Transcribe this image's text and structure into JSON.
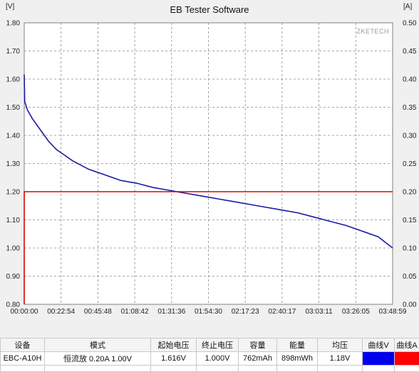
{
  "window": {
    "title": "EB Tester Software",
    "brand": "ZKETECH"
  },
  "chart_data": {
    "type": "line",
    "title": "EB Tester Software",
    "left_unit": "[V]",
    "right_unit": "[A]",
    "y_left_ticks": [
      "1.80",
      "1.70",
      "1.60",
      "1.50",
      "1.40",
      "1.30",
      "1.20",
      "1.10",
      "1.00",
      "0.90",
      "0.80"
    ],
    "y_right_ticks": [
      "0.50",
      "0.45",
      "0.40",
      "0.35",
      "0.30",
      "0.25",
      "0.20",
      "0.15",
      "0.10",
      "0.05",
      "0.00"
    ],
    "x_ticks": [
      "00:00:00",
      "00:22:54",
      "00:45:48",
      "01:08:42",
      "01:31:36",
      "01:54:30",
      "02:17:23",
      "02:40:17",
      "03:03:11",
      "03:26:05",
      "03:48:59"
    ],
    "y_left_range": [
      0.8,
      1.8
    ],
    "y_right_range": [
      0.0,
      0.5
    ],
    "grid": true,
    "series": [
      {
        "name": "曲线V",
        "axis": "left",
        "color": "#1a1aa6",
        "points": [
          [
            0,
            1.616
          ],
          [
            0.3,
            1.52
          ],
          [
            2,
            1.49
          ],
          [
            5,
            1.46
          ],
          [
            10,
            1.42
          ],
          [
            15,
            1.38
          ],
          [
            20,
            1.35
          ],
          [
            25,
            1.33
          ],
          [
            30,
            1.31
          ],
          [
            40,
            1.28
          ],
          [
            50,
            1.26
          ],
          [
            60,
            1.24
          ],
          [
            70,
            1.23
          ],
          [
            80,
            1.215
          ],
          [
            90,
            1.205
          ],
          [
            100,
            1.195
          ],
          [
            110,
            1.185
          ],
          [
            120,
            1.175
          ],
          [
            130,
            1.165
          ],
          [
            140,
            1.155
          ],
          [
            150,
            1.145
          ],
          [
            160,
            1.135
          ],
          [
            170,
            1.125
          ],
          [
            180,
            1.11
          ],
          [
            190,
            1.095
          ],
          [
            200,
            1.08
          ],
          [
            210,
            1.06
          ],
          [
            220,
            1.04
          ],
          [
            229,
            1.0
          ]
        ]
      },
      {
        "name": "曲线A",
        "axis": "right",
        "color": "#e00000",
        "points": [
          [
            0,
            0.0
          ],
          [
            0.01,
            0.2
          ],
          [
            229,
            0.2
          ]
        ]
      }
    ]
  },
  "table": {
    "headers": [
      "设备",
      "模式",
      "起始电压",
      "终止电压",
      "容量",
      "能量",
      "均压",
      "曲线V",
      "曲线A"
    ],
    "row": {
      "device": "EBC-A10H",
      "mode": "恒流放  0.20A  1.00V",
      "start_voltage": "1.616V",
      "end_voltage": "1.000V",
      "capacity": "762mAh",
      "energy": "898mWh",
      "avg_voltage": "1.18V",
      "curve_v_color": "#0000ee",
      "curve_a_color": "#ff0000"
    }
  }
}
